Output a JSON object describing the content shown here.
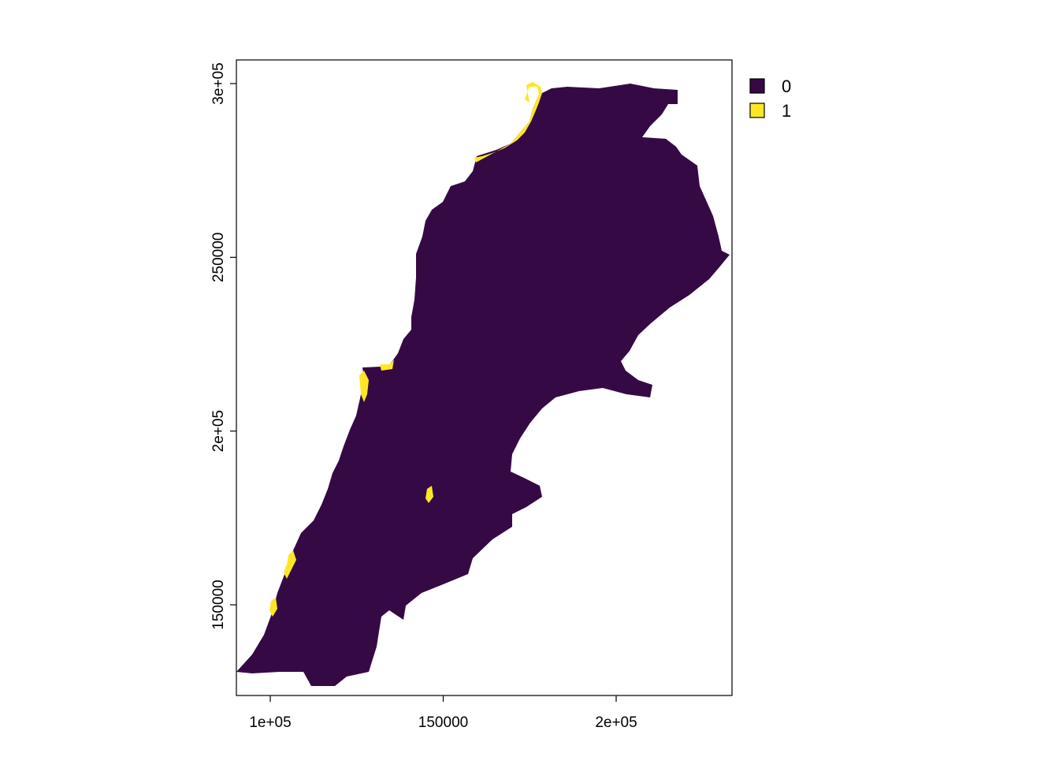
{
  "chart_data": {
    "type": "heatmap",
    "title": "",
    "xlabel": "",
    "ylabel": "",
    "xlim": [
      90000,
      233000
    ],
    "ylim": [
      121000,
      307000
    ],
    "x_ticks": [
      {
        "value": 100000,
        "label": "1e+05"
      },
      {
        "value": 150000,
        "label": "150000"
      },
      {
        "value": 200000,
        "label": "2e+05"
      }
    ],
    "y_ticks": [
      {
        "value": 150000,
        "label": "150000"
      },
      {
        "value": 200000,
        "label": "2e+05"
      },
      {
        "value": 250000,
        "label": "250000"
      },
      {
        "value": 300000,
        "label": "3e+05"
      }
    ],
    "legend": {
      "placement": "right",
      "entries": [
        {
          "label": "0",
          "color": "#350a44"
        },
        {
          "label": "1",
          "color": "#fde725"
        }
      ]
    },
    "grid": false
  }
}
